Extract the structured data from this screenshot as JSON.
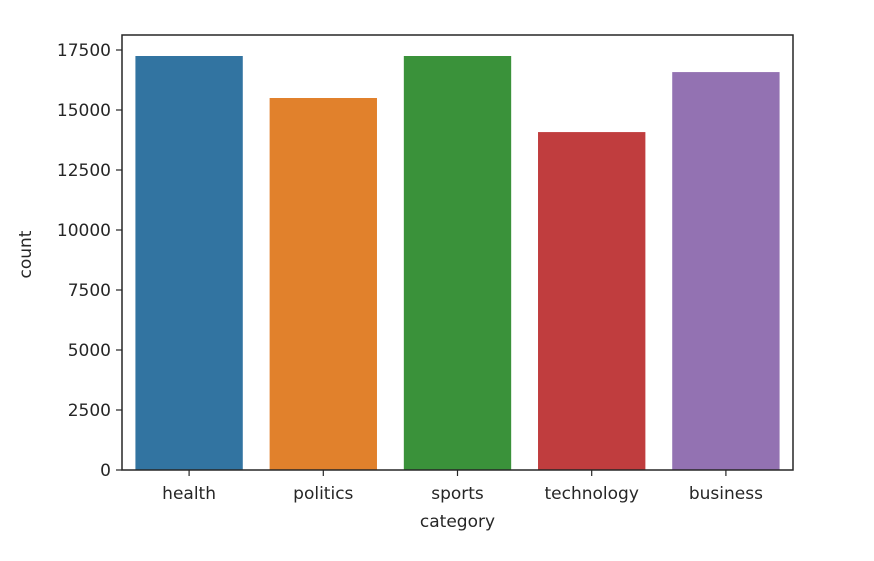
{
  "chart_data": {
    "type": "bar",
    "categories": [
      "health",
      "politics",
      "sports",
      "technology",
      "business"
    ],
    "values": [
      17250,
      15500,
      17250,
      14080,
      16580
    ],
    "colors": [
      "#3274a1",
      "#e1812c",
      "#3a923a",
      "#c03d3e",
      "#9372b2"
    ],
    "xlabel": "category",
    "ylabel": "count",
    "ylim": [
      0,
      17500
    ],
    "yticks": [
      0,
      2500,
      5000,
      7500,
      10000,
      12500,
      15000,
      17500
    ],
    "ytick_labels": [
      "0",
      "2500",
      "5000",
      "7500",
      "10000",
      "12500",
      "15000",
      "17500"
    ],
    "grid": false,
    "legend": "none"
  }
}
